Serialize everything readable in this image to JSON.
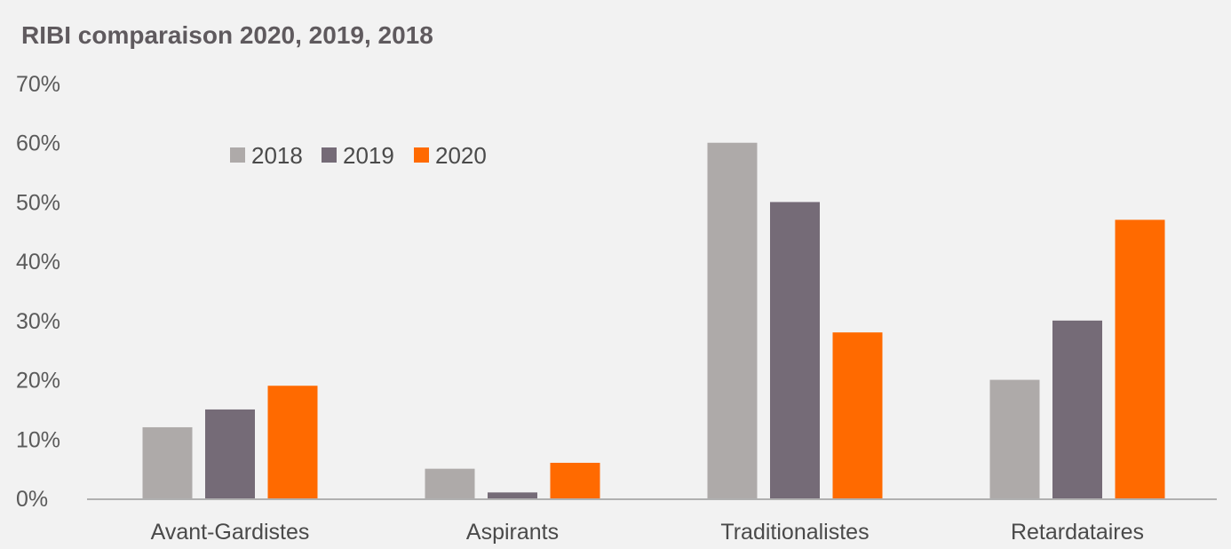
{
  "chart_data": {
    "type": "bar",
    "title": "RIBI comparaison 2020, 2019, 2018",
    "xlabel": "",
    "ylabel": "",
    "ylim": [
      0,
      70
    ],
    "y_tick_values": [
      0,
      10,
      20,
      30,
      40,
      50,
      60,
      70
    ],
    "y_tick_labels": [
      "0%",
      "10%",
      "20%",
      "30%",
      "40%",
      "50%",
      "60%",
      "70%"
    ],
    "grid": false,
    "legend_position": "top-left",
    "categories": [
      "Avant-Gardistes",
      "Aspirants",
      "Traditionalistes",
      "Retardataires"
    ],
    "series": [
      {
        "name": "2018",
        "color": "#aeaaa9",
        "values": [
          12,
          5,
          60,
          20
        ]
      },
      {
        "name": "2019",
        "color": "#756b77",
        "values": [
          15,
          1,
          50,
          30
        ]
      },
      {
        "name": "2020",
        "color": "#ff6a00",
        "values": [
          19,
          6,
          28,
          47
        ]
      }
    ]
  }
}
